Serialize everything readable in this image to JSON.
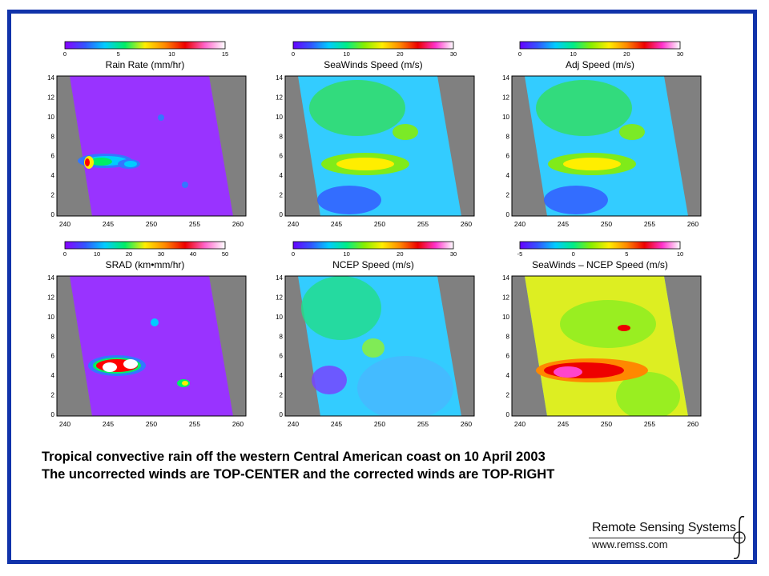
{
  "panels": [
    {
      "id": "rain-rate",
      "title": "Rain Rate (mm/hr)",
      "colorbar_ticks": [
        "0",
        "5",
        "10",
        "15"
      ],
      "colorbar_type": "rain",
      "x_ticks": [
        "240",
        "245",
        "250",
        "255",
        "260"
      ],
      "y_ticks": [
        "0",
        "2",
        "4",
        "6",
        "8",
        "10",
        "12",
        "14"
      ]
    },
    {
      "id": "seawinds-speed",
      "title": "SeaWinds Speed (m/s)",
      "colorbar_ticks": [
        "0",
        "10",
        "20",
        "30"
      ],
      "colorbar_type": "wind",
      "x_ticks": [
        "240",
        "245",
        "250",
        "255",
        "260"
      ],
      "y_ticks": [
        "0",
        "2",
        "4",
        "6",
        "8",
        "10",
        "12",
        "14"
      ]
    },
    {
      "id": "adj-speed",
      "title": "Adj Speed (m/s)",
      "colorbar_ticks": [
        "0",
        "10",
        "20",
        "30"
      ],
      "colorbar_type": "wind",
      "x_ticks": [
        "240",
        "245",
        "250",
        "255",
        "260"
      ],
      "y_ticks": [
        "0",
        "2",
        "4",
        "6",
        "8",
        "10",
        "12",
        "14"
      ]
    },
    {
      "id": "srad",
      "title": "SRAD (km•mm/hr)",
      "colorbar_ticks": [
        "0",
        "10",
        "20",
        "30",
        "40",
        "50"
      ],
      "colorbar_type": "rain",
      "x_ticks": [
        "240",
        "245",
        "250",
        "255",
        "260"
      ],
      "y_ticks": [
        "0",
        "2",
        "4",
        "6",
        "8",
        "10",
        "12",
        "14"
      ]
    },
    {
      "id": "ncep-speed",
      "title": "NCEP Speed (m/s)",
      "colorbar_ticks": [
        "0",
        "10",
        "20",
        "30"
      ],
      "colorbar_type": "wind",
      "x_ticks": [
        "240",
        "245",
        "250",
        "255",
        "260"
      ],
      "y_ticks": [
        "0",
        "2",
        "4",
        "6",
        "8",
        "10",
        "12",
        "14"
      ]
    },
    {
      "id": "difference",
      "title": "SeaWinds – NCEP Speed (m/s)",
      "colorbar_ticks": [
        "-5",
        "0",
        "5",
        "10"
      ],
      "colorbar_type": "wind",
      "x_ticks": [
        "240",
        "245",
        "250",
        "255",
        "260"
      ],
      "y_ticks": [
        "0",
        "2",
        "4",
        "6",
        "8",
        "10",
        "12",
        "14"
      ]
    }
  ],
  "caption": {
    "line1": "Tropical convective rain off the western Central American coast on 10 April 2003",
    "line2": "The uncorrected winds are TOP-CENTER and the corrected winds are TOP-RIGHT"
  },
  "logo": {
    "title": "Remote Sensing Systems",
    "url": "www.remss.com"
  },
  "colors": {
    "frame": "#1133aa",
    "swath_gap": "#808080",
    "rain_background": "#9933ff",
    "wind_background": "#33ccff"
  }
}
